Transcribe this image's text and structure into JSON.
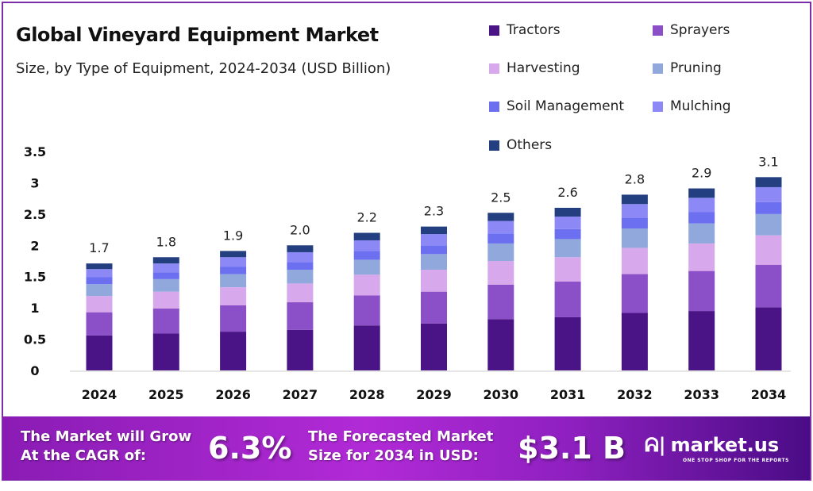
{
  "chart_data": {
    "type": "bar",
    "stacked": true,
    "title": "Global Vineyard Equipment Market",
    "subtitle": "Size, by Type of Equipment, 2024-2034 (USD Billion)",
    "xlabel": "",
    "ylabel": "",
    "ylim": [
      0,
      3.5
    ],
    "yticks": [
      "0",
      "0.5",
      "1",
      "1.5",
      "2",
      "2.5",
      "3",
      "3.5"
    ],
    "grid": false,
    "legend_placement": "top-right",
    "categories": [
      "2024",
      "2025",
      "2026",
      "2027",
      "2028",
      "2029",
      "2030",
      "2031",
      "2032",
      "2033",
      "2034"
    ],
    "totals": [
      "1.7",
      "1.8",
      "1.9",
      "2.0",
      "2.2",
      "2.3",
      "2.5",
      "2.6",
      "2.8",
      "2.9",
      "3.1"
    ],
    "series": [
      {
        "name": "Tractors",
        "color": "#4a1486",
        "values": [
          0.56,
          0.59,
          0.62,
          0.65,
          0.72,
          0.75,
          0.82,
          0.85,
          0.92,
          0.95,
          1.01
        ]
      },
      {
        "name": "Sprayers",
        "color": "#8b4fc8",
        "values": [
          0.37,
          0.4,
          0.42,
          0.44,
          0.48,
          0.51,
          0.55,
          0.57,
          0.62,
          0.64,
          0.68
        ]
      },
      {
        "name": "Harvesting",
        "color": "#d8a8ec",
        "values": [
          0.26,
          0.27,
          0.29,
          0.3,
          0.33,
          0.35,
          0.38,
          0.39,
          0.42,
          0.44,
          0.47
        ]
      },
      {
        "name": "Pruning",
        "color": "#90a8dc",
        "values": [
          0.19,
          0.2,
          0.21,
          0.22,
          0.24,
          0.25,
          0.28,
          0.29,
          0.31,
          0.32,
          0.34
        ]
      },
      {
        "name": "Soil Management",
        "color": "#6b6ff0",
        "values": [
          0.11,
          0.11,
          0.12,
          0.12,
          0.14,
          0.14,
          0.16,
          0.16,
          0.17,
          0.18,
          0.19
        ]
      },
      {
        "name": "Mulching",
        "color": "#8c88f6",
        "values": [
          0.13,
          0.14,
          0.15,
          0.16,
          0.17,
          0.18,
          0.2,
          0.2,
          0.22,
          0.23,
          0.24
        ]
      },
      {
        "name": "Others",
        "color": "#243f80",
        "values": [
          0.09,
          0.1,
          0.1,
          0.11,
          0.12,
          0.12,
          0.13,
          0.14,
          0.15,
          0.15,
          0.16
        ]
      }
    ]
  },
  "banner": {
    "cagr_text_1": "The Market will Grow",
    "cagr_text_2": "At the CAGR of:",
    "cagr_value": "6.3%",
    "forecast_text_1": "The Forecasted Market",
    "forecast_text_2": "Size for 2034 in USD:",
    "forecast_value": "$3.1 B",
    "logo_name": "market.us",
    "logo_tagline": "ONE STOP SHOP FOR THE REPORTS"
  }
}
